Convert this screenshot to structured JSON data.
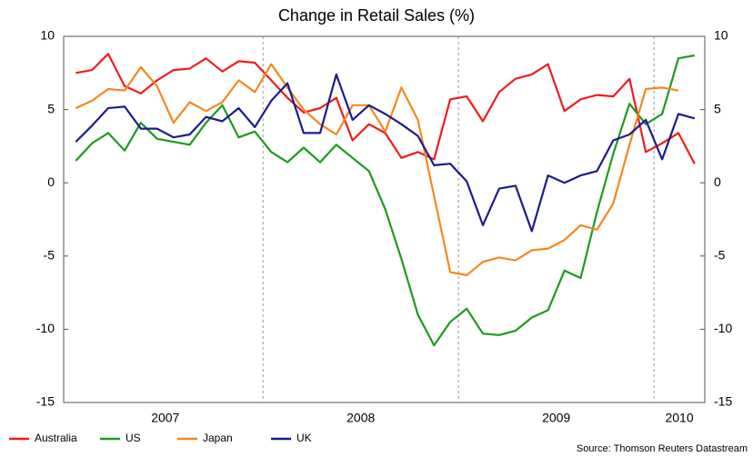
{
  "chart_data": {
    "type": "line",
    "title": "Change in Retail Sales (%)",
    "source": "Source: Thomson Reuters Datastream",
    "x": [
      2007.042,
      2007.125,
      2007.208,
      2007.292,
      2007.375,
      2007.458,
      2007.542,
      2007.625,
      2007.708,
      2007.792,
      2007.875,
      2007.958,
      2008.042,
      2008.125,
      2008.208,
      2008.292,
      2008.375,
      2008.458,
      2008.542,
      2008.625,
      2008.708,
      2008.792,
      2008.875,
      2008.958,
      2009.042,
      2009.125,
      2009.208,
      2009.292,
      2009.375,
      2009.458,
      2009.542,
      2009.625,
      2009.708,
      2009.792,
      2009.875,
      2009.958,
      2010.042,
      2010.125,
      2010.208
    ],
    "xlim": [
      2006.98,
      2010.26
    ],
    "xticks": [
      {
        "value": 2007.5,
        "label": "2007"
      },
      {
        "value": 2008.5,
        "label": "2008"
      },
      {
        "value": 2009.5,
        "label": "2009"
      },
      {
        "value": 2010.13,
        "label": "2010"
      }
    ],
    "x_gridlines": [
      2008,
      2009,
      2010
    ],
    "ylim": [
      -15,
      10
    ],
    "yticks": [
      -15,
      -10,
      -5,
      0,
      5,
      10
    ],
    "y2lim": [
      -15,
      10
    ],
    "y2ticks": [
      -15,
      -10,
      -5,
      0,
      5,
      10
    ],
    "legend": "bottom-left",
    "series": [
      {
        "name": "Australia",
        "color": "#f01c1c",
        "values": [
          7.5,
          7.7,
          8.8,
          6.6,
          6.1,
          7.0,
          7.7,
          7.8,
          8.5,
          7.6,
          8.3,
          8.2,
          7.0,
          5.8,
          4.8,
          5.1,
          5.8,
          2.9,
          4.0,
          3.4,
          1.7,
          2.1,
          1.6,
          5.7,
          5.9,
          4.2,
          6.2,
          7.1,
          7.4,
          8.1,
          4.9,
          5.7,
          6.0,
          5.9,
          7.1,
          2.1,
          2.7,
          3.4,
          1.3
        ]
      },
      {
        "name": "US",
        "color": "#1e9a1e",
        "values": [
          1.5,
          2.7,
          3.4,
          2.2,
          4.1,
          3.0,
          2.8,
          2.6,
          4.1,
          5.3,
          3.1,
          3.5,
          2.1,
          1.4,
          2.4,
          1.4,
          2.6,
          1.7,
          0.8,
          -1.8,
          -5.2,
          -9.0,
          -11.1,
          -9.5,
          -8.6,
          -10.3,
          -10.4,
          -10.1,
          -9.2,
          -8.7,
          -6.0,
          -6.5,
          -2.0,
          2.0,
          5.4,
          4.0,
          4.7,
          8.5,
          8.7
        ]
      },
      {
        "name": "Japan",
        "color": "#f7861e",
        "values": [
          5.1,
          5.6,
          6.4,
          6.3,
          7.9,
          6.6,
          4.1,
          5.5,
          4.9,
          5.5,
          7.0,
          6.2,
          8.1,
          6.5,
          5.0,
          4.0,
          3.3,
          5.3,
          5.3,
          3.5,
          6.5,
          4.3,
          -0.9,
          -6.1,
          -6.3,
          -5.4,
          -5.1,
          -5.3,
          -4.6,
          -4.5,
          -3.9,
          -2.9,
          -3.2,
          -1.4,
          2.6,
          6.4,
          6.5,
          6.3,
          null
        ]
      },
      {
        "name": "UK",
        "color": "#1c1c8c",
        "values": [
          2.8,
          3.9,
          5.1,
          5.2,
          3.7,
          3.7,
          3.1,
          3.3,
          4.5,
          4.2,
          5.1,
          3.8,
          5.6,
          6.8,
          3.4,
          3.4,
          7.4,
          4.3,
          5.3,
          4.7,
          4.0,
          3.2,
          1.2,
          1.3,
          0.1,
          -2.9,
          -0.4,
          -0.2,
          -3.3,
          0.5,
          0.0,
          0.5,
          0.8,
          2.9,
          3.3,
          4.3,
          1.6,
          4.7,
          4.4
        ]
      }
    ]
  }
}
